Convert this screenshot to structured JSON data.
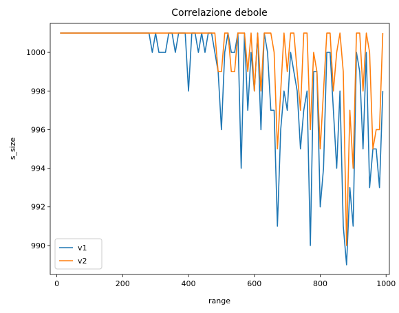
{
  "chart_data": {
    "type": "line",
    "title": "Correlazione debole",
    "xlabel": "range",
    "ylabel": "s_size",
    "xlim": [
      -20,
      1010
    ],
    "ylim": [
      988.5,
      1001.5
    ],
    "x_ticks": [
      0,
      200,
      400,
      600,
      800,
      1000
    ],
    "y_ticks": [
      990,
      992,
      994,
      996,
      998,
      1000
    ],
    "grid": false,
    "legend": "lower left",
    "x": [
      10,
      20,
      30,
      40,
      50,
      60,
      70,
      80,
      90,
      100,
      110,
      120,
      130,
      140,
      150,
      160,
      170,
      180,
      190,
      200,
      210,
      220,
      230,
      240,
      250,
      260,
      270,
      280,
      290,
      300,
      310,
      320,
      330,
      340,
      350,
      360,
      370,
      380,
      390,
      400,
      410,
      420,
      430,
      440,
      450,
      460,
      470,
      480,
      490,
      500,
      510,
      520,
      530,
      540,
      550,
      560,
      570,
      580,
      590,
      600,
      610,
      620,
      630,
      640,
      650,
      660,
      670,
      680,
      690,
      700,
      710,
      720,
      730,
      740,
      750,
      760,
      770,
      780,
      790,
      800,
      810,
      820,
      830,
      840,
      850,
      860,
      870,
      880,
      890,
      900,
      910,
      920,
      930,
      940,
      950,
      960,
      970,
      980,
      990
    ],
    "series": [
      {
        "name": "v1",
        "color": "#1f77b4",
        "values": [
          1001,
          1001,
          1001,
          1001,
          1001,
          1001,
          1001,
          1001,
          1001,
          1001,
          1001,
          1001,
          1001,
          1001,
          1001,
          1001,
          1001,
          1001,
          1001,
          1001,
          1001,
          1001,
          1001,
          1001,
          1001,
          1001,
          1001,
          1001,
          1000,
          1001,
          1000,
          1000,
          1000,
          1001,
          1001,
          1000,
          1001,
          1001,
          1001,
          998,
          1001,
          1001,
          1000,
          1001,
          1000,
          1001,
          1001,
          1000,
          999,
          996,
          1000,
          1001,
          1000,
          1000,
          1001,
          994,
          1001,
          997,
          1000,
          998,
          1001,
          996,
          1001,
          1000,
          997,
          997,
          991,
          996,
          998,
          997,
          1000,
          999,
          998,
          995,
          997,
          998,
          990,
          999,
          999,
          992,
          994,
          1000,
          1000,
          997,
          994,
          998,
          991,
          989,
          993,
          991,
          1000,
          999,
          995,
          1000,
          993,
          995,
          995,
          993,
          998
        ]
      },
      {
        "name": "v2",
        "color": "#ff7f0e",
        "values": [
          1001,
          1001,
          1001,
          1001,
          1001,
          1001,
          1001,
          1001,
          1001,
          1001,
          1001,
          1001,
          1001,
          1001,
          1001,
          1001,
          1001,
          1001,
          1001,
          1001,
          1001,
          1001,
          1001,
          1001,
          1001,
          1001,
          1001,
          1001,
          1001,
          1001,
          1001,
          1001,
          1001,
          1001,
          1001,
          1001,
          1001,
          1001,
          1001,
          1001,
          1001,
          1001,
          1001,
          1001,
          1001,
          1001,
          1001,
          1001,
          999,
          999,
          1001,
          1001,
          999,
          999,
          1001,
          1001,
          1001,
          999,
          1001,
          998,
          1001,
          998,
          1001,
          1001,
          1001,
          1000,
          995,
          998,
          1001,
          999,
          1001,
          1001,
          999,
          997,
          1001,
          1001,
          996,
          1000,
          999,
          995,
          998,
          1001,
          1001,
          998,
          1000,
          1001,
          999,
          990,
          997,
          994,
          1001,
          1001,
          998,
          1001,
          1000,
          995,
          996,
          996,
          1001
        ]
      }
    ]
  }
}
